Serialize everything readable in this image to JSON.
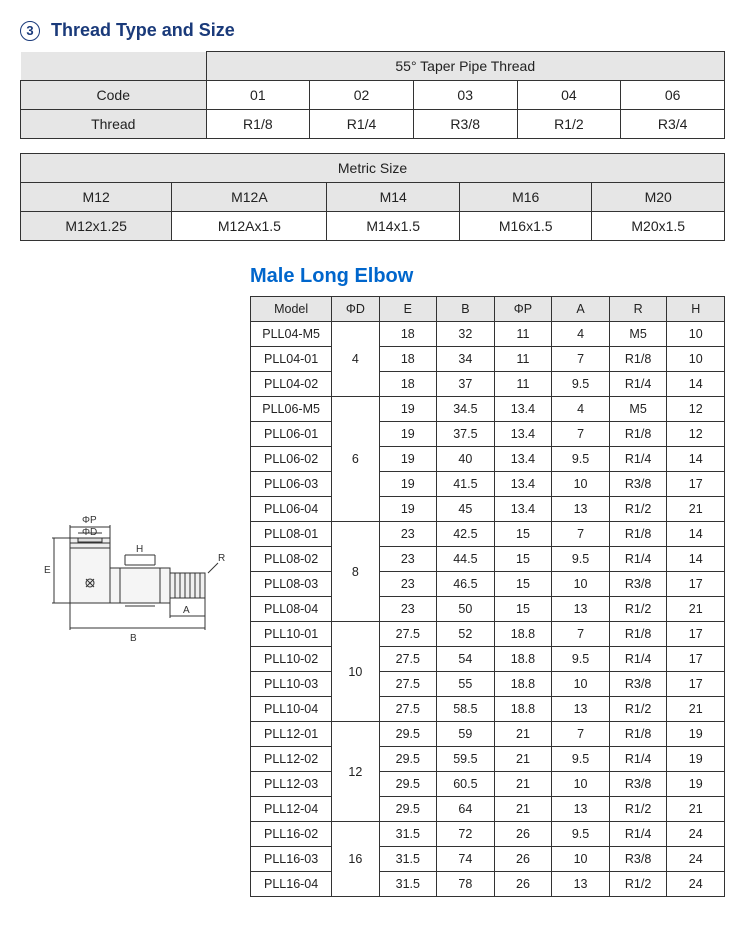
{
  "section": {
    "num": "3",
    "title": "Thread Type and Size"
  },
  "taper": {
    "header": "55°  Taper Pipe Thread",
    "row_labels": [
      "Code",
      "Thread"
    ],
    "codes": [
      "01",
      "02",
      "03",
      "04",
      "06"
    ],
    "threads": [
      "R1/8",
      "R1/4",
      "R3/8",
      "R1/2",
      "R3/4"
    ]
  },
  "metric": {
    "header": "Metric Size",
    "row1": [
      "M12",
      "M12A",
      "M14",
      "M16",
      "M20"
    ],
    "row2": [
      "M12x1.25",
      "M12Ax1.5",
      "M14x1.5",
      "M16x1.5",
      "M20x1.5"
    ]
  },
  "product_title": "Male Long Elbow",
  "diagram_labels": {
    "phi_p": "ΦP",
    "phi_d": "ΦD",
    "e": "E",
    "b": "B",
    "a": "A",
    "h": "H",
    "r": "R"
  },
  "spec": {
    "columns": [
      "Model",
      "ΦD",
      "E",
      "B",
      "ΦP",
      "A",
      "R",
      "H"
    ],
    "groups": [
      {
        "d": "4",
        "rows": [
          {
            "model": "PLL04-M5",
            "e": "18",
            "b": "32",
            "p": "11",
            "a": "4",
            "r": "M5",
            "h": "10"
          },
          {
            "model": "PLL04-01",
            "e": "18",
            "b": "34",
            "p": "11",
            "a": "7",
            "r": "R1/8",
            "h": "10"
          },
          {
            "model": "PLL04-02",
            "e": "18",
            "b": "37",
            "p": "11",
            "a": "9.5",
            "r": "R1/4",
            "h": "14"
          }
        ]
      },
      {
        "d": "6",
        "rows": [
          {
            "model": "PLL06-M5",
            "e": "19",
            "b": "34.5",
            "p": "13.4",
            "a": "4",
            "r": "M5",
            "h": "12"
          },
          {
            "model": "PLL06-01",
            "e": "19",
            "b": "37.5",
            "p": "13.4",
            "a": "7",
            "r": "R1/8",
            "h": "12"
          },
          {
            "model": "PLL06-02",
            "e": "19",
            "b": "40",
            "p": "13.4",
            "a": "9.5",
            "r": "R1/4",
            "h": "14"
          },
          {
            "model": "PLL06-03",
            "e": "19",
            "b": "41.5",
            "p": "13.4",
            "a": "10",
            "r": "R3/8",
            "h": "17"
          },
          {
            "model": "PLL06-04",
            "e": "19",
            "b": "45",
            "p": "13.4",
            "a": "13",
            "r": "R1/2",
            "h": "21"
          }
        ]
      },
      {
        "d": "8",
        "rows": [
          {
            "model": "PLL08-01",
            "e": "23",
            "b": "42.5",
            "p": "15",
            "a": "7",
            "r": "R1/8",
            "h": "14"
          },
          {
            "model": "PLL08-02",
            "e": "23",
            "b": "44.5",
            "p": "15",
            "a": "9.5",
            "r": "R1/4",
            "h": "14"
          },
          {
            "model": "PLL08-03",
            "e": "23",
            "b": "46.5",
            "p": "15",
            "a": "10",
            "r": "R3/8",
            "h": "17"
          },
          {
            "model": "PLL08-04",
            "e": "23",
            "b": "50",
            "p": "15",
            "a": "13",
            "r": "R1/2",
            "h": "21"
          }
        ]
      },
      {
        "d": "10",
        "rows": [
          {
            "model": "PLL10-01",
            "e": "27.5",
            "b": "52",
            "p": "18.8",
            "a": "7",
            "r": "R1/8",
            "h": "17"
          },
          {
            "model": "PLL10-02",
            "e": "27.5",
            "b": "54",
            "p": "18.8",
            "a": "9.5",
            "r": "R1/4",
            "h": "17"
          },
          {
            "model": "PLL10-03",
            "e": "27.5",
            "b": "55",
            "p": "18.8",
            "a": "10",
            "r": "R3/8",
            "h": "17"
          },
          {
            "model": "PLL10-04",
            "e": "27.5",
            "b": "58.5",
            "p": "18.8",
            "a": "13",
            "r": "R1/2",
            "h": "21"
          }
        ]
      },
      {
        "d": "12",
        "rows": [
          {
            "model": "PLL12-01",
            "e": "29.5",
            "b": "59",
            "p": "21",
            "a": "7",
            "r": "R1/8",
            "h": "19"
          },
          {
            "model": "PLL12-02",
            "e": "29.5",
            "b": "59.5",
            "p": "21",
            "a": "9.5",
            "r": "R1/4",
            "h": "19"
          },
          {
            "model": "PLL12-03",
            "e": "29.5",
            "b": "60.5",
            "p": "21",
            "a": "10",
            "r": "R3/8",
            "h": "19"
          },
          {
            "model": "PLL12-04",
            "e": "29.5",
            "b": "64",
            "p": "21",
            "a": "13",
            "r": "R1/2",
            "h": "21"
          }
        ]
      },
      {
        "d": "16",
        "rows": [
          {
            "model": "PLL16-02",
            "e": "31.5",
            "b": "72",
            "p": "26",
            "a": "9.5",
            "r": "R1/4",
            "h": "24"
          },
          {
            "model": "PLL16-03",
            "e": "31.5",
            "b": "74",
            "p": "26",
            "a": "10",
            "r": "R3/8",
            "h": "24"
          },
          {
            "model": "PLL16-04",
            "e": "31.5",
            "b": "78",
            "p": "26",
            "a": "13",
            "r": "R1/2",
            "h": "24"
          }
        ]
      }
    ]
  }
}
